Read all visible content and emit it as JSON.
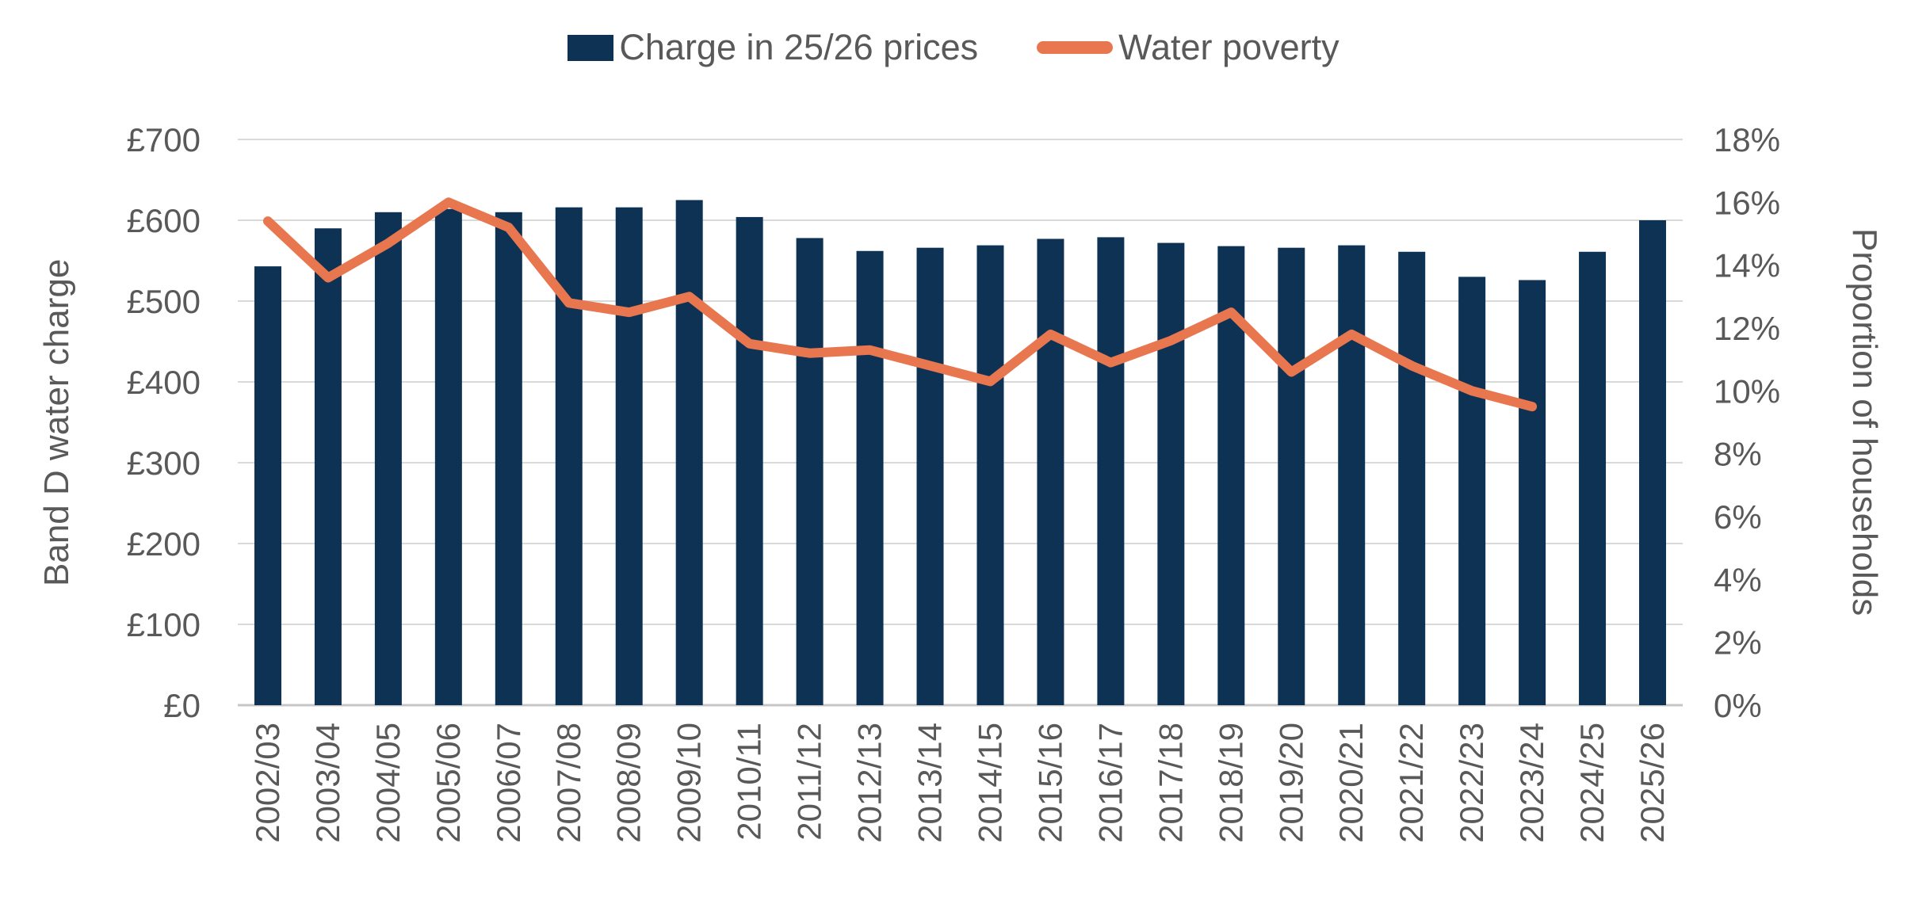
{
  "chart_data": {
    "type": "bar",
    "subtype": "bar-line-combo",
    "categories": [
      "2002/03",
      "2003/04",
      "2004/05",
      "2005/06",
      "2006/07",
      "2007/08",
      "2008/09",
      "2009/10",
      "2010/11",
      "2011/12",
      "2012/13",
      "2013/14",
      "2014/15",
      "2015/16",
      "2016/17",
      "2017/18",
      "2018/19",
      "2019/20",
      "2020/21",
      "2021/22",
      "2022/23",
      "2023/24",
      "2024/25",
      "2025/26"
    ],
    "series": [
      {
        "name": "Charge in 25/26 prices",
        "type": "bar",
        "axis": "left",
        "color": "#0E3254",
        "values": [
          543,
          590,
          610,
          614,
          610,
          616,
          616,
          625,
          604,
          578,
          562,
          566,
          569,
          577,
          579,
          572,
          568,
          566,
          569,
          561,
          530,
          526,
          561,
          600
        ]
      },
      {
        "name": "Water poverty",
        "type": "line",
        "axis": "right",
        "color": "#E8764F",
        "values": [
          15.4,
          13.6,
          14.7,
          16.0,
          15.2,
          12.8,
          12.5,
          13.0,
          11.5,
          11.2,
          11.3,
          10.8,
          10.3,
          11.8,
          10.9,
          11.6,
          12.5,
          10.6,
          11.8,
          10.8,
          10.0,
          9.5,
          null,
          null
        ]
      }
    ],
    "left_axis": {
      "label": "Band D water charge",
      "min": 0,
      "max": 700,
      "step": 100,
      "tick_labels": [
        "£0",
        "£100",
        "£200",
        "£300",
        "£400",
        "£500",
        "£600",
        "£700"
      ]
    },
    "right_axis": {
      "label": "Proportion of households",
      "min": 0,
      "max": 18,
      "step": 2,
      "tick_labels": [
        "0%",
        "2%",
        "4%",
        "6%",
        "8%",
        "10%",
        "12%",
        "14%",
        "16%",
        "18%"
      ]
    },
    "grid": "on",
    "legend_position": "top"
  },
  "colors": {
    "gridline": "#D9D9D9",
    "axis_line": "#C6C6C6",
    "text": "#595959"
  }
}
